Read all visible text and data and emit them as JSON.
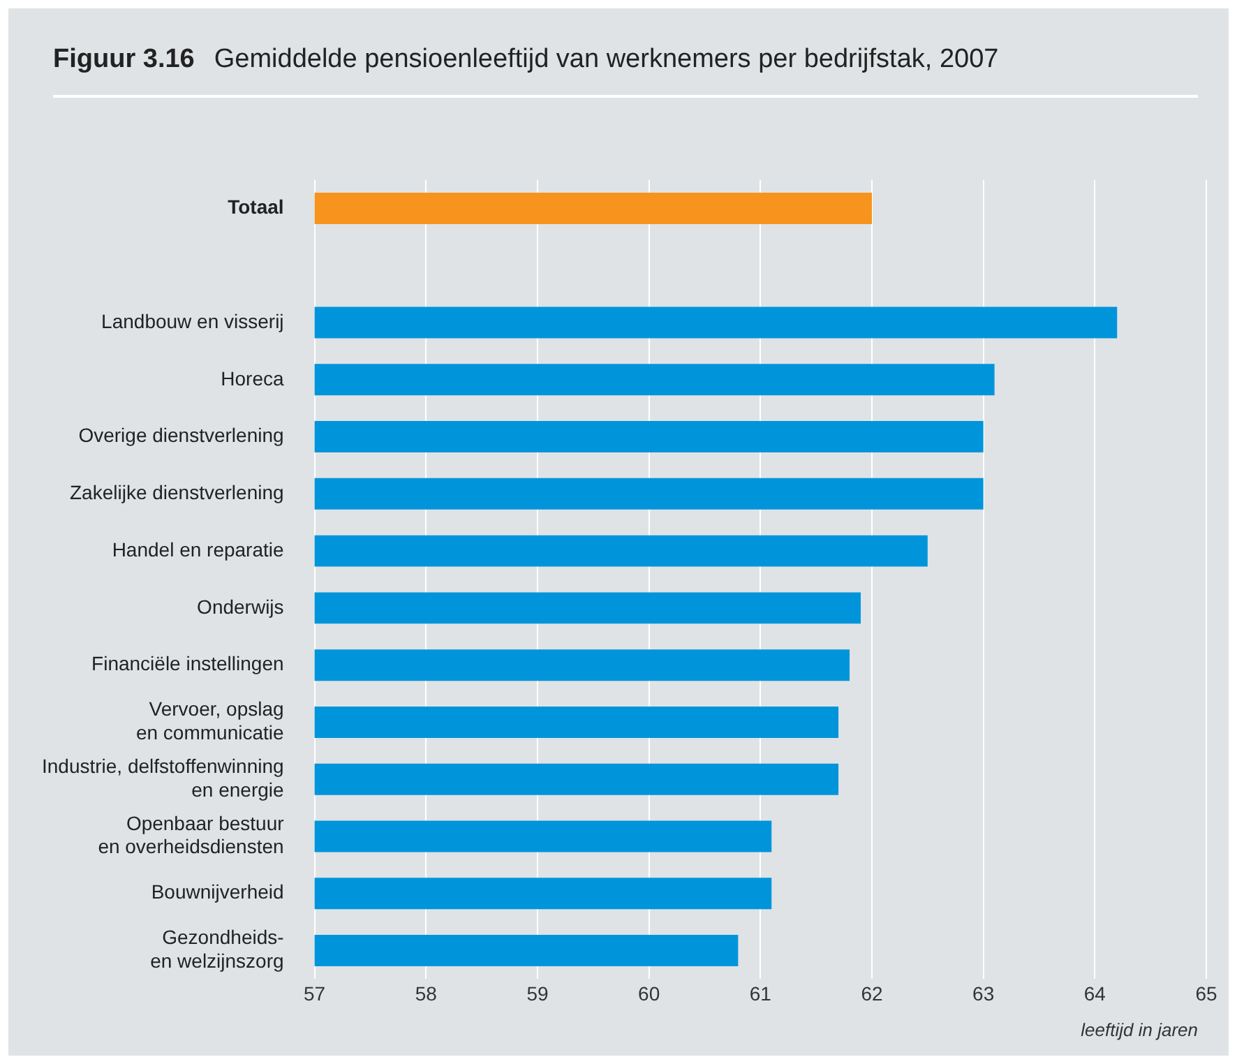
{
  "chart_data": {
    "type": "bar",
    "orientation": "horizontal",
    "title": "Figuur 3.16",
    "subtitle": "Gemiddelde pensioenleeftijd van werknemers per bedrijfstak, 2007",
    "xlabel": "leeftijd in jaren",
    "categories": [
      "Totaal",
      null,
      "Landbouw en visserij",
      "Horeca",
      "Overige dienstverlening",
      "Zakelijke dienstverlening",
      "Handel en reparatie",
      "Onderwijs",
      "Financiële instellingen",
      "Vervoer, opslag\nen communicatie",
      "Industrie, delfstoffenwinning\nen energie",
      "Openbaar bestuur\nen overheidsdiensten",
      "Bouwnijverheid",
      "Gezondheids-\nen welzijnszorg"
    ],
    "values": [
      62.0,
      null,
      64.2,
      63.1,
      63.0,
      63.0,
      62.5,
      61.9,
      61.8,
      61.7,
      61.7,
      61.1,
      61.1,
      60.8
    ],
    "colors": [
      "#f7941d",
      null,
      "#0095da",
      "#0095da",
      "#0095da",
      "#0095da",
      "#0095da",
      "#0095da",
      "#0095da",
      "#0095da",
      "#0095da",
      "#0095da",
      "#0095da",
      "#0095da"
    ],
    "xlim": [
      57,
      65
    ],
    "xticks": [
      57,
      58,
      59,
      60,
      61,
      62,
      63,
      64,
      65
    ],
    "grid": "x",
    "legend": false
  }
}
